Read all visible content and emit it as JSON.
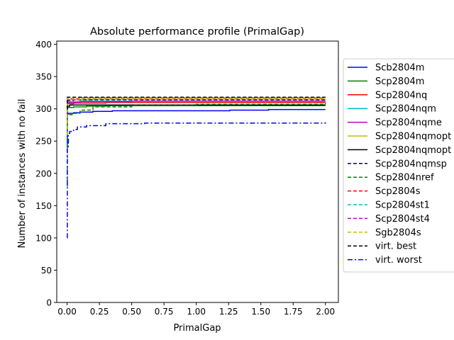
{
  "chart_data": {
    "type": "line",
    "title": "Absolute performance profile (PrimalGap)",
    "xlabel": "PrimalGap",
    "ylabel": "Number of instances with no fail",
    "xlim": [
      -0.08,
      2.1
    ],
    "ylim": [
      0,
      405
    ],
    "xticks": [
      "0.00",
      "0.25",
      "0.50",
      "0.75",
      "1.00",
      "1.25",
      "1.50",
      "1.75",
      "2.00"
    ],
    "yticks": [
      "0",
      "50",
      "100",
      "150",
      "200",
      "250",
      "300",
      "350",
      "400"
    ],
    "grid": false,
    "legend_position": "right, outside plot area",
    "series": [
      {
        "name": "Scb2804m",
        "color": "#0000ff",
        "dash": "solid",
        "x": [
          0,
          0.002,
          0.01,
          0.05,
          0.1,
          0.2,
          0.35,
          1.26,
          1.56,
          2.0
        ],
        "y": [
          240,
          292,
          293,
          294,
          295,
          296,
          297,
          298,
          299,
          299
        ]
      },
      {
        "name": "Scp2804m",
        "color": "#008000",
        "dash": "solid",
        "x": [
          0,
          0.002,
          0.05,
          0.15,
          0.3,
          2.0
        ],
        "y": [
          270,
          302,
          303,
          304,
          305,
          305
        ]
      },
      {
        "name": "Scp2804nq",
        "color": "#ff0000",
        "dash": "solid",
        "x": [
          0,
          0.002,
          0.05,
          0.3,
          2.0
        ],
        "y": [
          290,
          308,
          309,
          310,
          310
        ]
      },
      {
        "name": "Scp2804nqm",
        "color": "#00bfbf",
        "dash": "solid",
        "x": [
          0,
          0.002,
          0.1,
          2.0
        ],
        "y": [
          290,
          311,
          312,
          312
        ]
      },
      {
        "name": "Scp2804nqme",
        "color": "#bf00bf",
        "dash": "solid",
        "x": [
          0,
          0.002,
          0.1,
          0.5,
          2.0
        ],
        "y": [
          290,
          310,
          311,
          312,
          312
        ]
      },
      {
        "name": "Scp2804nqmopt",
        "color": "#bfbf00",
        "dash": "solid",
        "x": [
          0,
          0.002,
          0.2,
          2.0
        ],
        "y": [
          295,
          314,
          315,
          315
        ]
      },
      {
        "name": "Scp2804nqmopt",
        "color": "#000000",
        "dash": "solid",
        "x": [
          0,
          0.002,
          0.02,
          2.0
        ],
        "y": [
          295,
          304,
          306,
          306
        ]
      },
      {
        "name": "Scp2804nqmsp",
        "color": "#00008b",
        "dash": "dashed",
        "x": [
          0,
          0.002,
          0.05,
          2.0
        ],
        "y": [
          295,
          313,
          314,
          314
        ]
      },
      {
        "name": "Scp2804nref",
        "color": "#008000",
        "dash": "dashed",
        "x": [
          0,
          0.002,
          0.05,
          0.1,
          0.2,
          0.5,
          1.0,
          2.0
        ],
        "y": [
          180,
          291,
          293,
          298,
          303,
          305,
          307,
          309
        ]
      },
      {
        "name": "Scp2804s",
        "color": "#ff0000",
        "dash": "dashed",
        "x": [
          0,
          0.002,
          0.1,
          2.0
        ],
        "y": [
          295,
          316,
          317,
          317
        ]
      },
      {
        "name": "Scp2804st1",
        "color": "#00bfbf",
        "dash": "dashed",
        "x": [
          0,
          0.002,
          0.1,
          2.0
        ],
        "y": [
          295,
          315,
          316,
          316
        ]
      },
      {
        "name": "Scp2804st4",
        "color": "#bf00bf",
        "dash": "dashed",
        "x": [
          0,
          0.002,
          0.1,
          2.0
        ],
        "y": [
          295,
          314,
          315,
          315
        ]
      },
      {
        "name": "Sgb2804s",
        "color": "#bfbf00",
        "dash": "dashed",
        "x": [
          0,
          0.002,
          0.1,
          2.0
        ],
        "y": [
          260,
          315,
          316,
          316
        ]
      },
      {
        "name": "virt. best",
        "color": "#000000",
        "dash": "dashed",
        "x": [
          0,
          0.002,
          2.0
        ],
        "y": [
          300,
          318,
          318
        ]
      },
      {
        "name": "virt. worst",
        "color": "#0000ff",
        "dash": "dashdot",
        "x": [
          0,
          0.002,
          0.01,
          0.02,
          0.05,
          0.08,
          0.15,
          0.3,
          0.6,
          2.0
        ],
        "y": [
          100,
          240,
          262,
          265,
          268,
          272,
          274,
          277,
          278,
          279
        ]
      }
    ]
  }
}
